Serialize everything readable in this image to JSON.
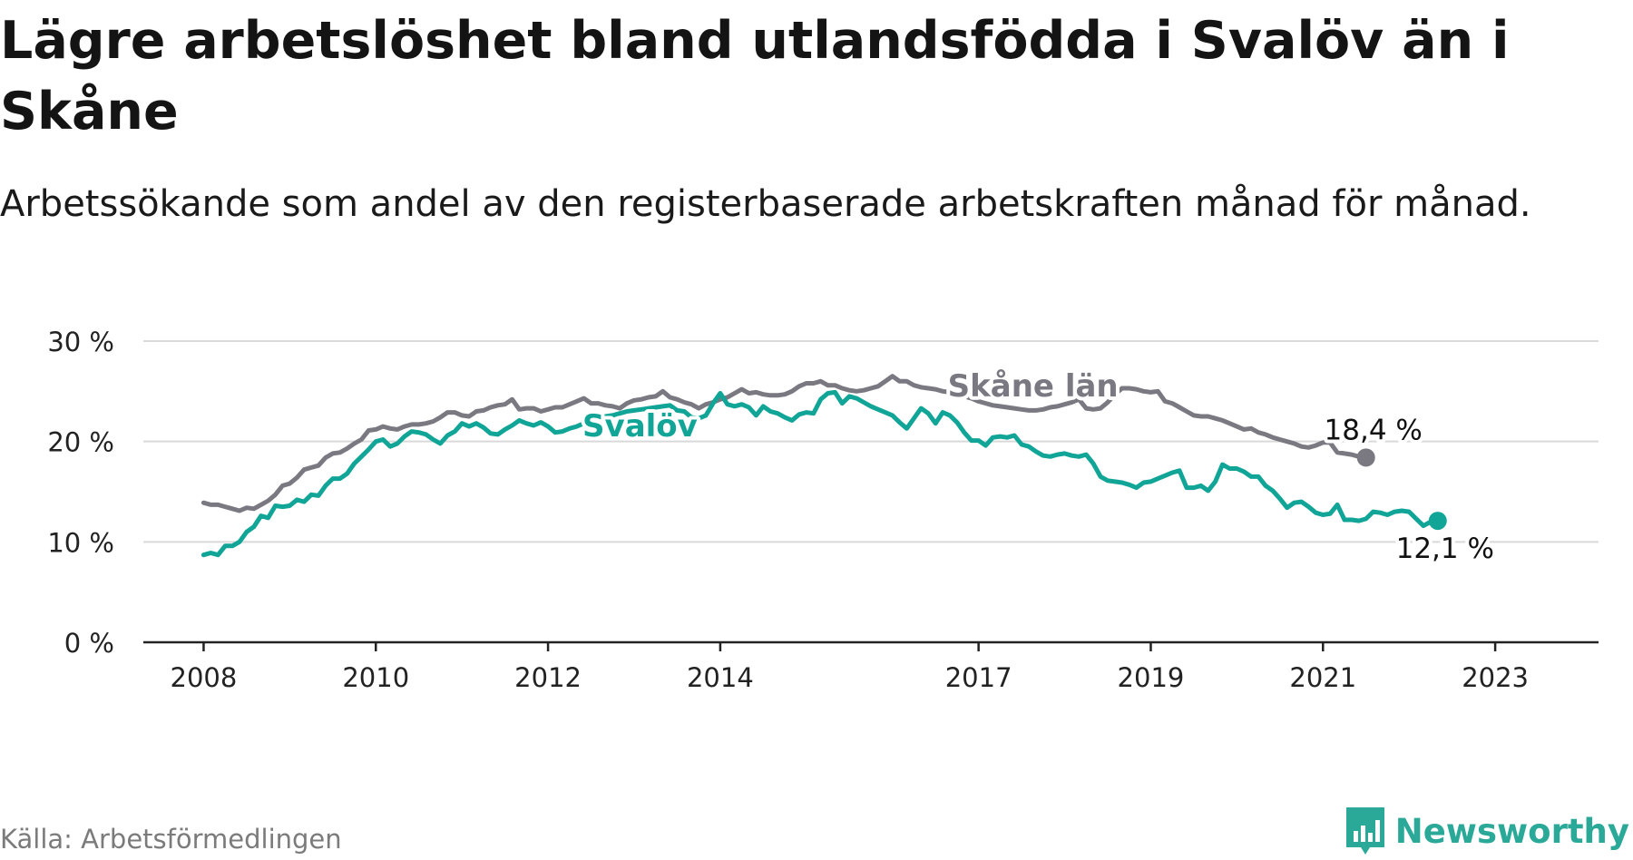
{
  "title": "Lägre arbetslöshet bland utlandsfödda i Svalöv än i Skåne",
  "subtitle": "Arbetssökande som andel av den registerbaserade arbetskraften månad för månad.",
  "source": "Källa: Arbetsförmedlingen",
  "brand": {
    "name": "Newsworthy",
    "icon": "newsworthy-logo-icon"
  },
  "colors": {
    "svalov": "#11a598",
    "skane": "#7a7880",
    "grid": "#d9d9d9",
    "axis": "#222222"
  },
  "chart_data": {
    "type": "line",
    "title": "Lägre arbetslöshet bland utlandsfödda i Svalöv än i Skåne",
    "xlabel": "",
    "ylabel": "",
    "x_start": 2008.0,
    "x_step": 0.08333,
    "xlim": [
      2007.3,
      2024.2
    ],
    "ylim": [
      0,
      30
    ],
    "grid": true,
    "y_ticks": [
      0,
      10,
      20,
      30
    ],
    "y_tick_labels": [
      "0 %",
      "10 %",
      "20 %",
      "30 %"
    ],
    "x_ticks": [
      2008,
      2010,
      2012,
      2014,
      2017,
      2019,
      2021,
      2023
    ],
    "x_tick_labels": [
      "2008",
      "2010",
      "2012",
      "2014",
      "2017",
      "2019",
      "2021",
      "2023"
    ],
    "series": [
      {
        "name": "Skåne län",
        "label": "Skåne län",
        "end_label": "18,4 %",
        "values": [
          13.9,
          13.7,
          13.7,
          13.5,
          13.3,
          13.1,
          13.4,
          13.3,
          13.7,
          14.1,
          14.7,
          15.6,
          15.8,
          16.4,
          17.2,
          17.4,
          17.6,
          18.4,
          18.8,
          18.9,
          19.3,
          19.8,
          20.2,
          21.1,
          21.2,
          21.5,
          21.3,
          21.2,
          21.5,
          21.7,
          21.7,
          21.8,
          22.0,
          22.4,
          22.9,
          22.9,
          22.6,
          22.5,
          23.0,
          23.1,
          23.4,
          23.6,
          23.7,
          24.2,
          23.2,
          23.3,
          23.3,
          23.0,
          23.2,
          23.4,
          23.4,
          23.7,
          24.0,
          24.3,
          23.8,
          23.8,
          23.6,
          23.5,
          23.3,
          23.8,
          24.1,
          24.2,
          24.4,
          24.5,
          25.0,
          24.4,
          24.2,
          23.9,
          23.7,
          23.3,
          23.7,
          23.9,
          24.2,
          24.4,
          24.8,
          25.2,
          24.8,
          24.9,
          24.7,
          24.6,
          24.6,
          24.7,
          25.0,
          25.5,
          25.8,
          25.8,
          26.0,
          25.6,
          25.6,
          25.3,
          25.1,
          25.0,
          25.1,
          25.3,
          25.5,
          26.0,
          26.5,
          26.0,
          26.0,
          25.6,
          25.4,
          25.3,
          25.2,
          25.0,
          24.9,
          24.8,
          24.5,
          24.3,
          24.0,
          23.8,
          23.6,
          23.5,
          23.4,
          23.3,
          23.2,
          23.1,
          23.1,
          23.2,
          23.4,
          23.5,
          23.7,
          23.9,
          24.2,
          23.3,
          23.2,
          23.3,
          23.9,
          24.7,
          25.3,
          25.3,
          25.2,
          25.0,
          24.9,
          25.0,
          24.0,
          23.8,
          23.4,
          23.0,
          22.6,
          22.5,
          22.5,
          22.3,
          22.1,
          21.8,
          21.5,
          21.2,
          21.3,
          20.9,
          20.7,
          20.4,
          20.2,
          20.0,
          19.8,
          19.5,
          19.4,
          19.6,
          19.9,
          19.9,
          18.9,
          18.8,
          18.7,
          18.5,
          18.4
        ]
      },
      {
        "name": "Svalöv",
        "label": "Svalöv",
        "end_label": "12,1 %",
        "values": [
          8.7,
          8.9,
          8.7,
          9.6,
          9.6,
          10.0,
          11.0,
          11.5,
          12.6,
          12.4,
          13.6,
          13.5,
          13.6,
          14.2,
          14.0,
          14.7,
          14.6,
          15.6,
          16.3,
          16.3,
          16.8,
          17.8,
          18.5,
          19.2,
          20.0,
          20.2,
          19.5,
          19.8,
          20.5,
          21.0,
          20.9,
          20.7,
          20.2,
          19.8,
          20.6,
          21.0,
          21.8,
          21.5,
          21.8,
          21.4,
          20.8,
          20.7,
          21.2,
          21.6,
          22.1,
          21.8,
          21.6,
          21.9,
          21.5,
          20.9,
          21.0,
          21.3,
          21.5,
          21.8,
          22.0,
          22.3,
          22.5,
          22.6,
          22.8,
          23.0,
          23.1,
          23.2,
          23.3,
          23.4,
          23.5,
          23.6,
          23.1,
          23.0,
          22.4,
          22.3,
          22.6,
          23.8,
          24.8,
          23.7,
          23.5,
          23.7,
          23.4,
          22.6,
          23.5,
          23.0,
          22.8,
          22.4,
          22.1,
          22.7,
          22.9,
          22.8,
          24.2,
          24.8,
          24.9,
          23.8,
          24.5,
          24.3,
          23.9,
          23.5,
          23.2,
          22.9,
          22.6,
          21.9,
          21.3,
          22.3,
          23.3,
          22.8,
          21.8,
          22.9,
          22.6,
          21.9,
          20.9,
          20.1,
          20.1,
          19.6,
          20.4,
          20.5,
          20.4,
          20.6,
          19.7,
          19.5,
          19.0,
          18.6,
          18.5,
          18.7,
          18.8,
          18.6,
          18.5,
          18.7,
          17.8,
          16.5,
          16.1,
          16.0,
          15.9,
          15.7,
          15.4,
          15.9,
          16.0,
          16.3,
          16.6,
          16.9,
          17.1,
          15.4,
          15.4,
          15.6,
          15.1,
          16.0,
          17.7,
          17.3,
          17.3,
          17.0,
          16.5,
          16.5,
          15.6,
          15.1,
          14.3,
          13.4,
          13.9,
          14.0,
          13.5,
          12.9,
          12.7,
          12.8,
          13.7,
          12.2,
          12.2,
          12.1,
          12.3,
          13.0,
          12.9,
          12.7,
          13.0,
          13.1,
          13.0,
          12.3,
          11.6,
          12.0,
          12.1
        ]
      }
    ]
  }
}
